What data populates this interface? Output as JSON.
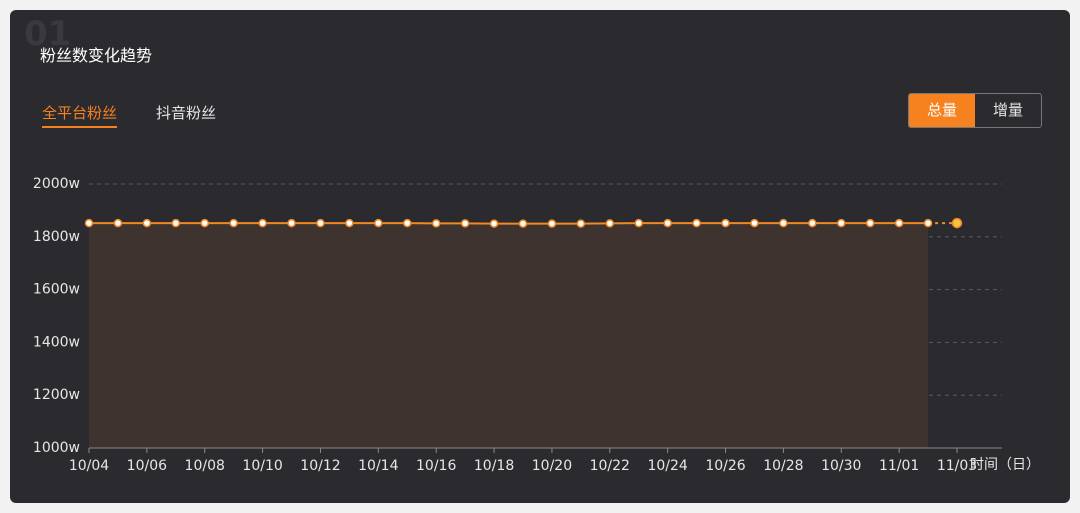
{
  "card": {
    "watermark": "01",
    "title": "粉丝数变化趋势"
  },
  "tabs": [
    "全平台粉丝",
    "抖音粉丝"
  ],
  "toggle": [
    "总量",
    "增量"
  ],
  "chart_data": {
    "type": "line",
    "x_label": "时间（日）",
    "categories": [
      "10/04",
      null,
      "10/06",
      null,
      "10/08",
      null,
      "10/10",
      null,
      "10/12",
      null,
      "10/14",
      null,
      "10/16",
      null,
      "10/18",
      null,
      "10/20",
      null,
      "10/22",
      null,
      "10/24",
      null,
      "10/26",
      null,
      "10/28",
      null,
      "10/30",
      null,
      "11/01",
      null,
      "11/03"
    ],
    "series": [
      {
        "name": "总量",
        "color": "#f08a24",
        "values": [
          1852,
          1852,
          1852,
          1852,
          1852,
          1852,
          1852,
          1852,
          1852,
          1852,
          1852,
          1852,
          1851,
          1851,
          1850,
          1850,
          1850,
          1850,
          1851,
          1852,
          1852,
          1852,
          1852,
          1852,
          1852,
          1852,
          1852,
          1852,
          1852,
          1852,
          1852
        ]
      }
    ],
    "ylim": [
      1000,
      2000
    ],
    "yticks": [
      {
        "value": 1000,
        "label": "1000w"
      },
      {
        "value": 1200,
        "label": "1200w"
      },
      {
        "value": 1400,
        "label": "1400w"
      },
      {
        "value": 1600,
        "label": "1600w"
      },
      {
        "value": 1800,
        "label": "1800w"
      },
      {
        "value": 2000,
        "label": "2000w"
      }
    ],
    "grid": true
  }
}
